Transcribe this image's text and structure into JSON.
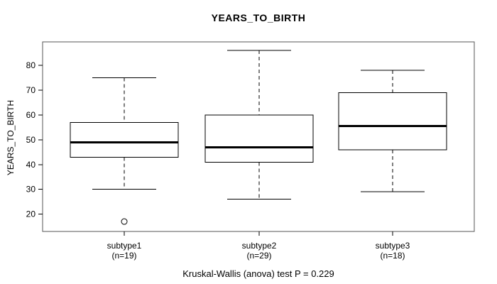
{
  "figure": {
    "title": "YEARS_TO_BIRTH",
    "ylabel": "YEARS_TO_BIRTH",
    "caption": "Kruskal-Wallis (anova) test P = 0.229"
  },
  "chart_data": {
    "type": "boxplot",
    "title": "YEARS_TO_BIRTH",
    "xlabel": "",
    "ylabel": "YEARS_TO_BIRTH",
    "ylim": [
      13,
      89.5
    ],
    "yticks": [
      20,
      30,
      40,
      50,
      60,
      70,
      80
    ],
    "grid": false,
    "legend": "none",
    "caption": "Kruskal-Wallis (anova) test P = 0.229",
    "groups": [
      {
        "label": "subtype1",
        "sublabel": "(n=19)",
        "n": 19,
        "lower_whisker": 30,
        "q1": 43,
        "median": 49,
        "q3": 57,
        "upper_whisker": 75,
        "outliers": [
          17
        ]
      },
      {
        "label": "subtype2",
        "sublabel": "(n=29)",
        "n": 29,
        "lower_whisker": 26,
        "q1": 41,
        "median": 47,
        "q3": 60,
        "upper_whisker": 86,
        "outliers": []
      },
      {
        "label": "subtype3",
        "sublabel": "(n=18)",
        "n": 18,
        "lower_whisker": 29,
        "q1": 46,
        "median": 55.5,
        "q3": 69,
        "upper_whisker": 78,
        "outliers": []
      }
    ],
    "colors": {
      "line": "#000000",
      "frame": "#555555",
      "background": "#ffffff",
      "box_fill": "#ffffff",
      "median": "#000000"
    }
  }
}
